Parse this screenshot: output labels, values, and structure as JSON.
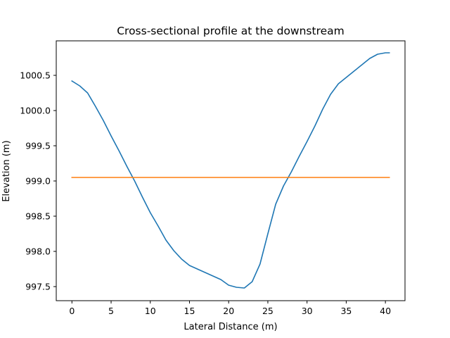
{
  "chart_data": {
    "type": "line",
    "title": "Cross-sectional profile at the downstream",
    "xlabel": "Lateral Distance (m)",
    "ylabel": "Elevation (m)",
    "xlim": [
      -2.0,
      42.5
    ],
    "ylim": [
      997.3,
      1000.99
    ],
    "xticks": [
      0,
      5,
      10,
      15,
      20,
      25,
      30,
      35,
      40
    ],
    "xtick_labels": [
      "0",
      "5",
      "10",
      "15",
      "20",
      "25",
      "30",
      "35",
      "40"
    ],
    "yticks": [
      997.5,
      998.0,
      998.5,
      999.0,
      999.5,
      1000.0,
      1000.5
    ],
    "ytick_labels": [
      "997.5",
      "998.0",
      "998.5",
      "999.0",
      "999.5",
      "1000.0",
      "1000.5"
    ],
    "grid": false,
    "legend": "none",
    "series": [
      {
        "color": "#1f77b4",
        "x": [
          0,
          1,
          2,
          3,
          4,
          5,
          6,
          7,
          8,
          9,
          10,
          11,
          12,
          13,
          14,
          15,
          16,
          17,
          18,
          19,
          20,
          21,
          22,
          23,
          24,
          25,
          26,
          27,
          28,
          29,
          30,
          31,
          32,
          33,
          34,
          35,
          36,
          37,
          38,
          39,
          40,
          40.5
        ],
        "y": [
          1000.42,
          1000.35,
          1000.25,
          1000.06,
          999.86,
          999.64,
          999.43,
          999.21,
          999.0,
          998.77,
          998.55,
          998.36,
          998.16,
          998.01,
          997.89,
          997.8,
          997.75,
          997.7,
          997.65,
          997.6,
          997.52,
          997.49,
          997.48,
          997.57,
          997.82,
          998.25,
          998.67,
          998.93,
          999.13,
          999.35,
          999.56,
          999.78,
          1000.02,
          1000.23,
          1000.38,
          1000.47,
          1000.56,
          1000.65,
          1000.74,
          1000.8,
          1000.82,
          1000.82
        ]
      },
      {
        "color": "#ff7f0e",
        "x": [
          0,
          40.5
        ],
        "y": [
          999.05,
          999.05
        ]
      }
    ]
  }
}
